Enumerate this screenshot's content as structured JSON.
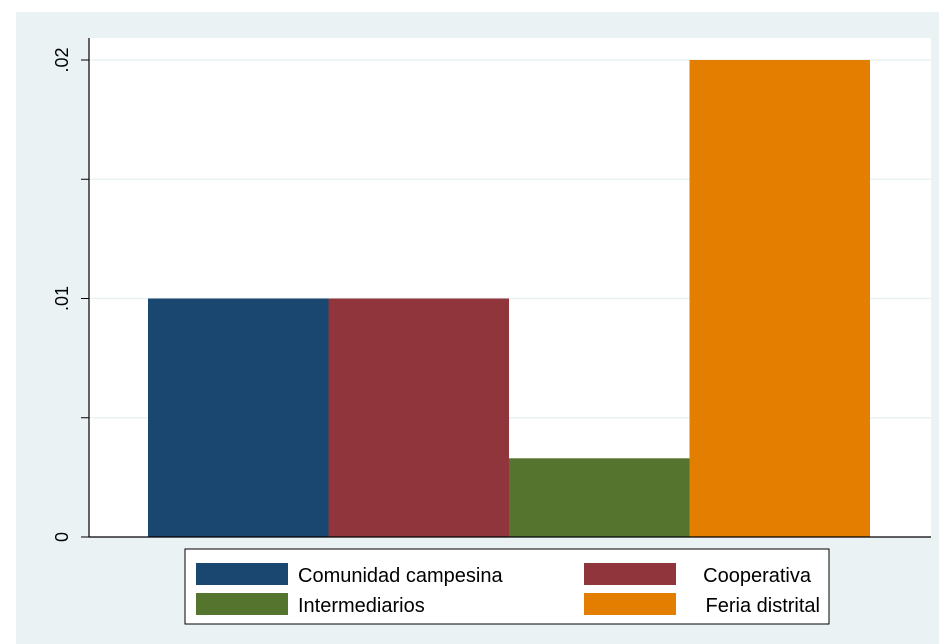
{
  "chart_data": {
    "type": "bar",
    "categories": [
      "Comunidad campesina",
      "Cooperativa",
      "Intermediarios",
      "Feria distrital"
    ],
    "values": [
      0.01,
      0.01,
      0.0033,
      0.02
    ],
    "y_ticks": [
      0,
      0.005,
      0.01,
      0.015,
      0.02
    ],
    "y_tick_labels": [
      "0",
      "",
      ".01",
      "",
      ".02"
    ],
    "ylim": [
      0,
      0.02
    ],
    "ylabel": "",
    "xlabel": "",
    "title": "",
    "grid": true,
    "legend_position": "bottom",
    "colors": [
      "#1a476f",
      "#90353b",
      "#55752f",
      "#e37e00"
    ],
    "background": "#eaf2f3",
    "plot_background": "#ffffff",
    "gridline_color": "#eaf2f3"
  }
}
